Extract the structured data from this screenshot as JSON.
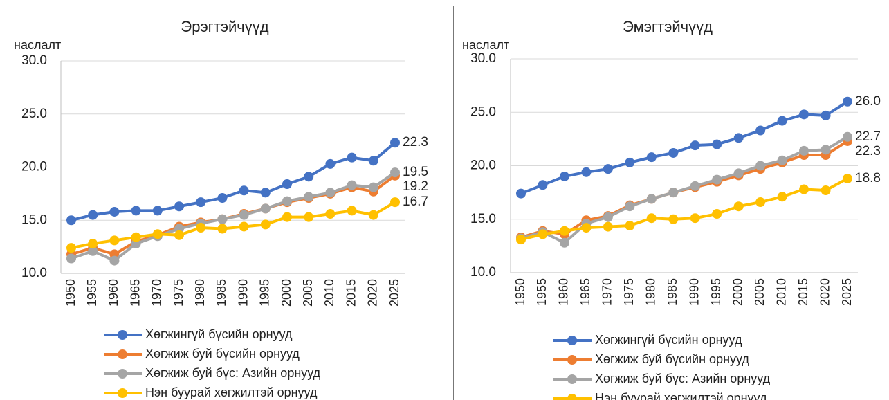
{
  "chart_data": [
    {
      "type": "line",
      "title": "Эрэгтэйчүүд",
      "ylabel": "наслалт",
      "categories": [
        "1950",
        "1955",
        "1960",
        "1965",
        "1970",
        "1975",
        "1980",
        "1985",
        "1990",
        "1995",
        "2000",
        "2005",
        "2010",
        "2015",
        "2020",
        "2025"
      ],
      "ylim": [
        10,
        30
      ],
      "yticks": [
        {
          "value": 10,
          "label": "10.0"
        },
        {
          "value": 15,
          "label": "15.0"
        },
        {
          "value": 20,
          "label": "20.0"
        },
        {
          "value": 25,
          "label": "25.0"
        },
        {
          "value": 30,
          "label": "30.0"
        }
      ],
      "grid": true,
      "series": [
        {
          "name": "Хөгжингүй бүсийн орнууд",
          "color": "#4472c4",
          "values": [
            15.0,
            15.5,
            15.8,
            15.9,
            15.9,
            16.3,
            16.7,
            17.1,
            17.8,
            17.6,
            18.4,
            19.1,
            20.3,
            20.9,
            20.6,
            22.3
          ]
        },
        {
          "name": "Хөгжиж буй бүсийн орнууд",
          "color": "#ed7d31",
          "values": [
            11.8,
            12.4,
            11.8,
            13.0,
            13.6,
            14.4,
            14.8,
            15.1,
            15.6,
            16.1,
            16.7,
            17.1,
            17.5,
            18.1,
            17.7,
            19.2
          ]
        },
        {
          "name": "Хөгжиж буй бүс: Азийн орнууд",
          "color": "#a5a5a5",
          "values": [
            11.4,
            12.1,
            11.2,
            12.8,
            13.5,
            14.2,
            14.7,
            15.1,
            15.5,
            16.1,
            16.8,
            17.2,
            17.6,
            18.3,
            18.1,
            19.5
          ]
        },
        {
          "name": "Нэн буурай хөгжилтэй орнууд",
          "color": "#ffc000",
          "values": [
            12.4,
            12.8,
            13.1,
            13.4,
            13.7,
            13.6,
            14.3,
            14.2,
            14.4,
            14.6,
            15.3,
            15.3,
            15.6,
            15.9,
            15.5,
            16.7
          ]
        }
      ]
    },
    {
      "type": "line",
      "title": "Эмэгтэйчүүд",
      "ylabel": "наслалт",
      "categories": [
        "1950",
        "1955",
        "1960",
        "1965",
        "1970",
        "1975",
        "1980",
        "1985",
        "1990",
        "1995",
        "2000",
        "2005",
        "2010",
        "2015",
        "2020",
        "2025"
      ],
      "ylim": [
        10,
        30
      ],
      "yticks": [
        {
          "value": 10,
          "label": "10.0"
        },
        {
          "value": 15,
          "label": "15.0"
        },
        {
          "value": 20,
          "label": "20.0"
        },
        {
          "value": 25,
          "label": "25.0"
        },
        {
          "value": 30,
          "label": "30.0"
        }
      ],
      "grid": true,
      "series": [
        {
          "name": "Хөгжингүй бүсийн орнууд",
          "color": "#4472c4",
          "values": [
            17.4,
            18.2,
            19.0,
            19.4,
            19.7,
            20.3,
            20.8,
            21.2,
            21.9,
            22.0,
            22.6,
            23.3,
            24.2,
            24.8,
            24.7,
            26.0
          ],
          "value_labels": [
            null,
            null,
            null,
            null,
            null,
            null,
            null,
            null,
            null,
            null,
            null,
            null,
            null,
            null,
            null,
            "26.0"
          ]
        },
        {
          "name": "Хөгжиж буй бүсийн орнууд",
          "color": "#ed7d31",
          "values": [
            13.3,
            13.9,
            13.6,
            14.9,
            15.3,
            16.3,
            16.9,
            17.5,
            18.0,
            18.5,
            19.1,
            19.7,
            20.3,
            21.0,
            21.0,
            22.3
          ]
        },
        {
          "name": "Хөгжиж буй бүс: Азийн орнууд",
          "color": "#a5a5a5",
          "values": [
            13.2,
            13.8,
            12.8,
            14.6,
            15.2,
            16.2,
            16.9,
            17.5,
            18.1,
            18.7,
            19.3,
            20.0,
            20.5,
            21.4,
            21.5,
            22.7
          ]
        },
        {
          "name": "Нэн буурай хөгжилтэй орнууд",
          "color": "#ffc000",
          "values": [
            13.1,
            13.6,
            13.9,
            14.2,
            14.3,
            14.4,
            15.1,
            15.0,
            15.1,
            15.5,
            16.2,
            16.6,
            17.1,
            17.8,
            17.7,
            18.8
          ]
        }
      ]
    }
  ]
}
